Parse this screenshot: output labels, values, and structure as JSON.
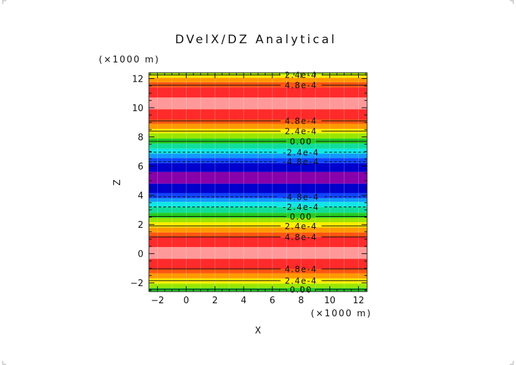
{
  "chart_data": {
    "type": "heatmap",
    "title": "DVelX/DZ Analytical",
    "xlabel": "X",
    "ylabel": "Z",
    "x_unit": "(×1000 m)",
    "y_unit": "(×1000 m)",
    "xlim": [
      -2.6,
      12.6
    ],
    "ylim": [
      -2.6,
      12.4
    ],
    "x_ticks": [
      -2,
      0,
      2,
      4,
      6,
      8,
      10,
      12
    ],
    "y_ticks": [
      -2,
      0,
      2,
      4,
      6,
      8,
      10,
      12
    ],
    "x_tick_labels": [
      "−2",
      "0",
      "2",
      "4",
      "6",
      "8",
      "10",
      "12"
    ],
    "y_tick_labels": [
      "−2",
      "0",
      "2",
      "4",
      "6",
      "8",
      "10",
      "12"
    ],
    "grid": false,
    "bands": [
      {
        "z0": -2.6,
        "z1": -2.35,
        "color": "#22cc22"
      },
      {
        "z0": -2.35,
        "z1": -2.05,
        "color": "#99e600"
      },
      {
        "z0": -2.05,
        "z1": -1.7,
        "color": "#ffee00"
      },
      {
        "z0": -1.7,
        "z1": -1.35,
        "color": "#ff9900"
      },
      {
        "z0": -1.35,
        "z1": -1.05,
        "color": "#ff5511"
      },
      {
        "z0": -1.05,
        "z1": -0.35,
        "color": "#ff2a2a"
      },
      {
        "z0": -0.35,
        "z1": 0.45,
        "color": "#ff9999"
      },
      {
        "z0": 0.45,
        "z1": 1.15,
        "color": "#ff2a2a"
      },
      {
        "z0": 1.15,
        "z1": 1.45,
        "color": "#ff5511"
      },
      {
        "z0": 1.45,
        "z1": 1.8,
        "color": "#ff9900"
      },
      {
        "z0": 1.8,
        "z1": 2.15,
        "color": "#ffee00"
      },
      {
        "z0": 2.15,
        "z1": 2.45,
        "color": "#99e600"
      },
      {
        "z0": 2.45,
        "z1": 2.8,
        "color": "#22cc22"
      },
      {
        "z0": 2.8,
        "z1": 3.2,
        "color": "#11dd99"
      },
      {
        "z0": 3.2,
        "z1": 3.55,
        "color": "#11e6e6"
      },
      {
        "z0": 3.55,
        "z1": 3.8,
        "color": "#1199ff"
      },
      {
        "z0": 3.8,
        "z1": 4.15,
        "color": "#1144ff"
      },
      {
        "z0": 4.15,
        "z1": 4.8,
        "color": "#0000cc"
      },
      {
        "z0": 4.8,
        "z1": 5.6,
        "color": "#8800aa"
      },
      {
        "z0": 5.6,
        "z1": 6.2,
        "color": "#0000cc"
      },
      {
        "z0": 6.2,
        "z1": 6.55,
        "color": "#1144ff"
      },
      {
        "z0": 6.55,
        "z1": 6.85,
        "color": "#1199ff"
      },
      {
        "z0": 6.85,
        "z1": 7.2,
        "color": "#11e6e6"
      },
      {
        "z0": 7.2,
        "z1": 7.55,
        "color": "#11dd99"
      },
      {
        "z0": 7.55,
        "z1": 7.9,
        "color": "#22cc22"
      },
      {
        "z0": 7.9,
        "z1": 8.25,
        "color": "#99e600"
      },
      {
        "z0": 8.25,
        "z1": 8.55,
        "color": "#ffee00"
      },
      {
        "z0": 8.55,
        "z1": 8.9,
        "color": "#ff9900"
      },
      {
        "z0": 8.9,
        "z1": 9.2,
        "color": "#ff5511"
      },
      {
        "z0": 9.2,
        "z1": 9.9,
        "color": "#ff2a2a"
      },
      {
        "z0": 9.9,
        "z1": 10.7,
        "color": "#ff9999"
      },
      {
        "z0": 10.7,
        "z1": 11.4,
        "color": "#ff2a2a"
      },
      {
        "z0": 11.4,
        "z1": 11.75,
        "color": "#ff5511"
      },
      {
        "z0": 11.75,
        "z1": 12.05,
        "color": "#ff9900"
      },
      {
        "z0": 12.05,
        "z1": 12.25,
        "color": "#ffee00"
      },
      {
        "z0": 12.25,
        "z1": 12.4,
        "color": "#99e600"
      }
    ],
    "contours": [
      {
        "z": 12.25,
        "value": 0.00024,
        "label": "2.4e-4",
        "dashed": false
      },
      {
        "z": 11.55,
        "value": 0.00048,
        "label": "4.8e-4",
        "dashed": false
      },
      {
        "z": 9.1,
        "value": 0.00048,
        "label": "4.8e-4",
        "dashed": false
      },
      {
        "z": 8.4,
        "value": 0.00024,
        "label": "2.4e-4",
        "dashed": false
      },
      {
        "z": 7.7,
        "value": 0.0,
        "label": "0.00",
        "dashed": false
      },
      {
        "z": 6.95,
        "value": -0.00024,
        "label": "-2.4e-4",
        "dashed": true
      },
      {
        "z": 6.3,
        "value": -0.00048,
        "label": "-4.8e-4",
        "dashed": true
      },
      {
        "z": 3.9,
        "value": -0.00048,
        "label": "-4.8e-4",
        "dashed": true
      },
      {
        "z": 3.2,
        "value": -0.00024,
        "label": "-2.4e-4",
        "dashed": true
      },
      {
        "z": 2.55,
        "value": 0.0,
        "label": "0.00",
        "dashed": false
      },
      {
        "z": 1.9,
        "value": 0.00024,
        "label": "2.4e-4",
        "dashed": false
      },
      {
        "z": 1.15,
        "value": 0.00048,
        "label": "4.8e-4",
        "dashed": false
      },
      {
        "z": -1.05,
        "value": 0.00048,
        "label": "4.8e-4",
        "dashed": false
      },
      {
        "z": -1.85,
        "value": 0.00024,
        "label": "2.4e-4",
        "dashed": false
      },
      {
        "z": -2.45,
        "value": 0.0,
        "label": "0.00",
        "dashed": false
      }
    ],
    "contour_label_x": 8.0
  }
}
